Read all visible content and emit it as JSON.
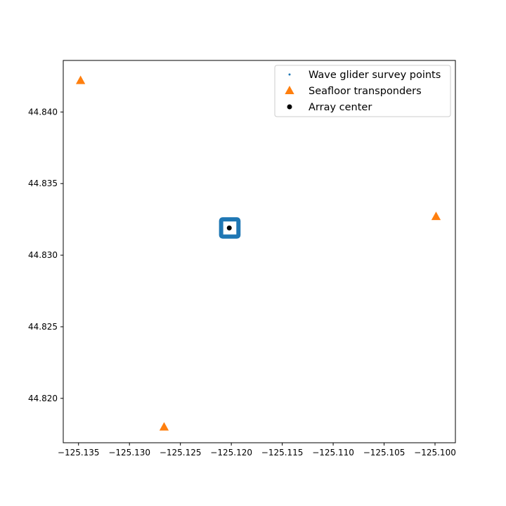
{
  "chart_data": {
    "type": "scatter",
    "title": "",
    "xlabel": "",
    "ylabel": "",
    "xlim": [
      -125.1365,
      -125.098
    ],
    "ylim": [
      44.8169,
      44.8436
    ],
    "xticks": [
      -125.135,
      -125.13,
      -125.125,
      -125.12,
      -125.115,
      -125.11,
      -125.105,
      -125.1
    ],
    "xtick_labels": [
      "−125.135",
      "−125.130",
      "−125.125",
      "−125.120",
      "−125.115",
      "−125.110",
      "−125.105",
      "−125.100"
    ],
    "yticks": [
      44.82,
      44.825,
      44.83,
      44.835,
      44.84
    ],
    "ytick_labels": [
      "44.820",
      "44.825",
      "44.830",
      "44.835",
      "44.840"
    ],
    "grid": false,
    "legend_position": "top-right",
    "survey_box": {
      "lon_min": -125.121,
      "lon_max": -125.1193,
      "lat_min": 44.8313,
      "lat_max": 44.8325
    },
    "series": [
      {
        "name": "Wave glider survey points",
        "marker": "dot",
        "color": "#1f77b4",
        "points": []
      },
      {
        "name": "Seafloor transponders",
        "marker": "triangle",
        "color": "#ff7f0e",
        "points": [
          [
            -125.1348,
            44.8422
          ],
          [
            -125.1266,
            44.818
          ],
          [
            -125.0999,
            44.8327
          ]
        ]
      },
      {
        "name": "Array center",
        "marker": "circle",
        "color": "#000000",
        "points": [
          [
            -125.1202,
            44.8319
          ]
        ]
      }
    ]
  }
}
